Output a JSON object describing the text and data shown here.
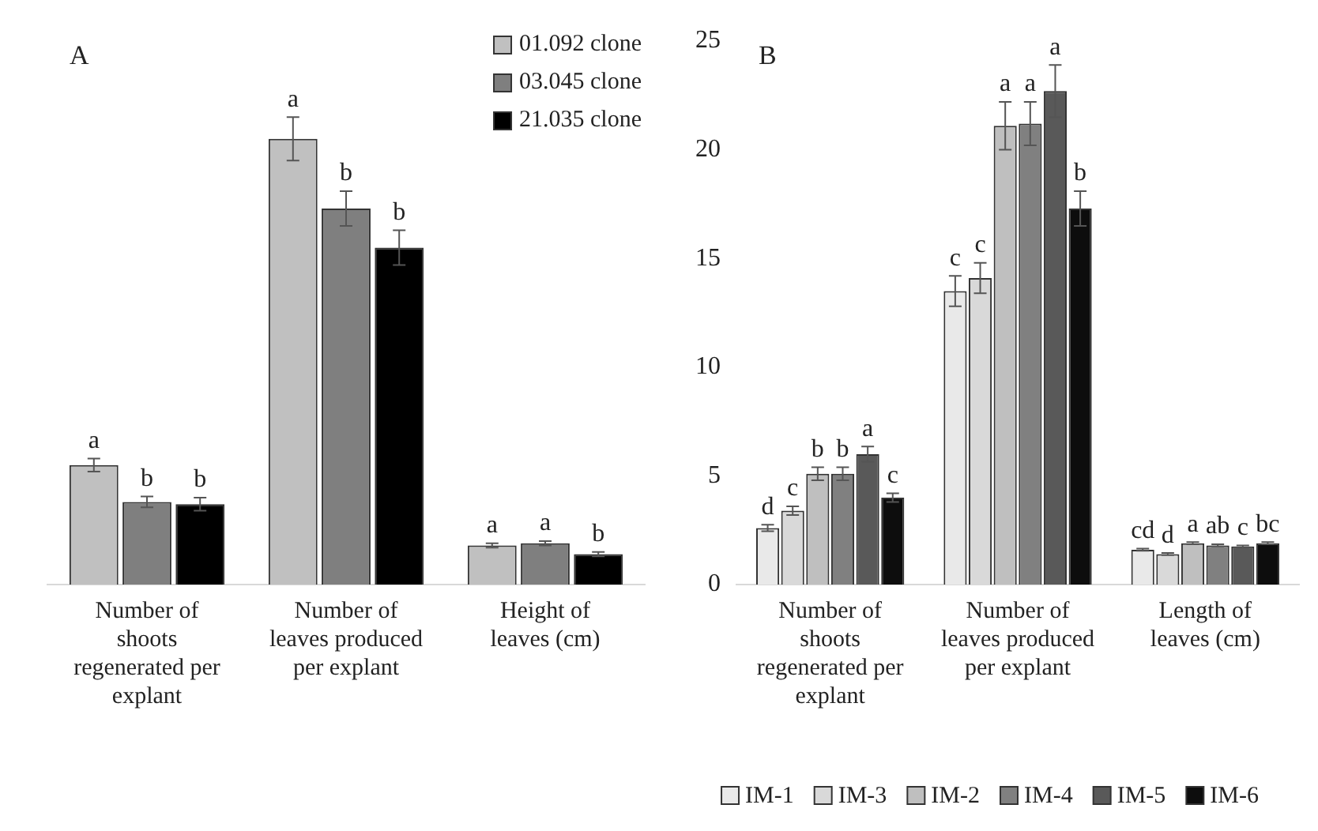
{
  "chart_data": [
    {
      "type": "bar",
      "title": "A",
      "categories": [
        "Number of shoots regenerated per explant",
        "Number of leaves produced per explant",
        "Height of leaves (cm)"
      ],
      "series": [
        {
          "name": "01.092 clone",
          "color": "#c0c0c0",
          "values": [
            5.5,
            20.5,
            1.8
          ],
          "errors": [
            0.3,
            1.0,
            0.1
          ],
          "value_labels": [
            "a",
            "a",
            "a"
          ]
        },
        {
          "name": "03.045 clone",
          "color": "#7f7f7f",
          "values": [
            3.8,
            17.3,
            1.9
          ],
          "errors": [
            0.25,
            0.8,
            0.1
          ],
          "value_labels": [
            "b",
            "b",
            "a"
          ]
        },
        {
          "name": "21.035 clone",
          "color": "#000000",
          "values": [
            3.7,
            15.5,
            1.4
          ],
          "errors": [
            0.3,
            0.8,
            0.1
          ],
          "value_labels": [
            "b",
            "b",
            "b"
          ]
        }
      ],
      "ylim": [
        0,
        25
      ],
      "yticks": [
        0,
        5,
        10,
        15,
        20,
        25
      ],
      "tick_labels": "x",
      "legend": "top right",
      "grid": false
    },
    {
      "type": "bar",
      "title": "B",
      "categories": [
        "Number of shoots regenerated per explant",
        "Number of leaves produced per explant",
        "Length of leaves (cm)"
      ],
      "series": [
        {
          "name": "IM-1",
          "color": "#e9e9e9",
          "values": [
            2.6,
            13.5,
            1.6
          ],
          "errors": [
            0.15,
            0.7,
            0.05
          ],
          "value_labels": [
            "d",
            "c",
            "cd"
          ]
        },
        {
          "name": "IM-3",
          "color": "#d9d9d9",
          "values": [
            3.4,
            14.1,
            1.4
          ],
          "errors": [
            0.2,
            0.7,
            0.05
          ],
          "value_labels": [
            "c",
            "c",
            "d"
          ]
        },
        {
          "name": "IM-2",
          "color": "#bfbfbf",
          "values": [
            5.1,
            21.1,
            1.9
          ],
          "errors": [
            0.3,
            1.1,
            0.05
          ],
          "value_labels": [
            "b",
            "a",
            "a"
          ]
        },
        {
          "name": "IM-4",
          "color": "#808080",
          "values": [
            5.1,
            21.2,
            1.8
          ],
          "errors": [
            0.3,
            1.0,
            0.05
          ],
          "value_labels": [
            "b",
            "a",
            "ab"
          ]
        },
        {
          "name": "IM-5",
          "color": "#595959",
          "values": [
            6.0,
            22.7,
            1.75
          ],
          "errors": [
            0.35,
            1.2,
            0.05
          ],
          "value_labels": [
            "a",
            "a",
            "c"
          ]
        },
        {
          "name": "IM-6",
          "color": "#0d0d0d",
          "values": [
            4.0,
            17.3,
            1.9
          ],
          "errors": [
            0.2,
            0.8,
            0.05
          ],
          "value_labels": [
            "c",
            "b",
            "bc"
          ]
        }
      ],
      "ylim": [
        0,
        25
      ],
      "yticks": [
        0,
        5,
        10,
        15,
        20,
        25
      ],
      "legend": "bottom",
      "grid": false
    }
  ]
}
